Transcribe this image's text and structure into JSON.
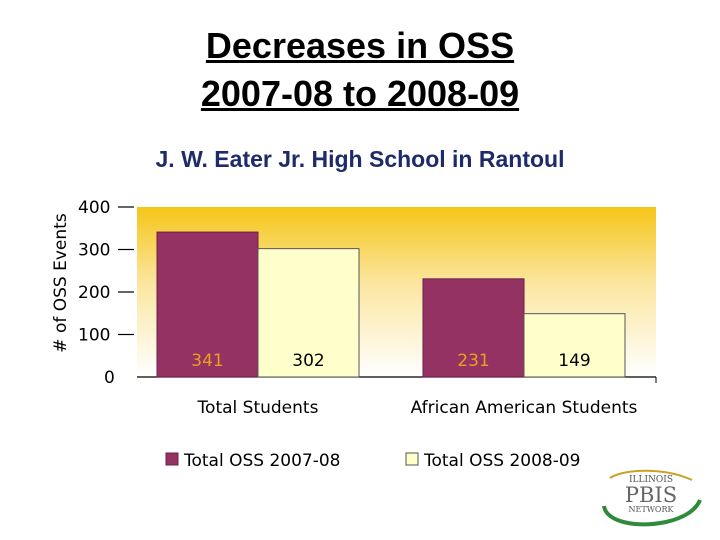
{
  "title_lines": [
    "Decreases in OSS",
    "2007-08 to 2008-09"
  ],
  "subtitle": "J. W. Eater Jr. High School in Rantoul",
  "logo": {
    "top": "ILLINOIS",
    "middle": "PBIS",
    "bottom": "NETWORK"
  },
  "colors": {
    "series_2007": "#943264",
    "series_2008": "#ffffcc",
    "data_label": "#e8a020",
    "plot_top": "#f5c518"
  },
  "chart_data": {
    "type": "bar",
    "categories": [
      "Total Students",
      "African American Students"
    ],
    "series": [
      {
        "name": "Total OSS 2007-08",
        "values": [
          341,
          231
        ]
      },
      {
        "name": "Total OSS 2008-09",
        "values": [
          302,
          149
        ]
      }
    ],
    "ylabel": "# of OSS Events",
    "ylim": [
      0,
      400
    ],
    "yticks": [
      0,
      100,
      200,
      300,
      400
    ],
    "legend": "bottom",
    "grid": false
  }
}
